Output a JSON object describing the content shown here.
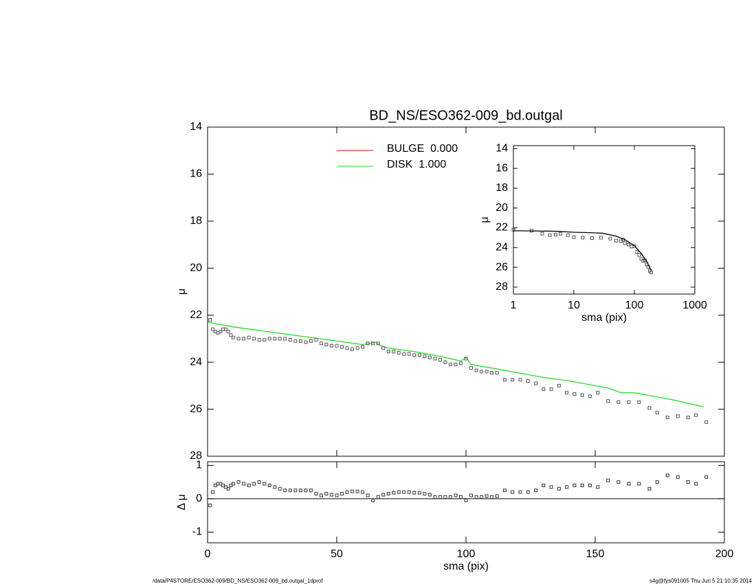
{
  "chart_data": [
    {
      "type": "line",
      "title": "BD_NS/ESO362-009_bd.outgal",
      "ylabel": "μ",
      "xlim": [
        0,
        200
      ],
      "ylim": [
        28,
        14
      ],
      "xticks": [
        0,
        50,
        100,
        150,
        200
      ],
      "show_xtick_labels": false,
      "yticks": [
        14,
        16,
        18,
        20,
        22,
        24,
        26,
        28
      ],
      "legend": "upper-center",
      "series": [
        {
          "name": "BULGE  0.000",
          "color": "#e00000",
          "style": "line",
          "x": [],
          "values": []
        },
        {
          "name": "DISK  1.000",
          "color": "#22dd22",
          "style": "line",
          "x": [
            0,
            10,
            20,
            30,
            40,
            50,
            60,
            63,
            65,
            67,
            70,
            80,
            90,
            98,
            100,
            102,
            110,
            120,
            130,
            140,
            150,
            155,
            160,
            165,
            170,
            180,
            190,
            192
          ],
          "values": [
            22.3,
            22.5,
            22.65,
            22.8,
            22.95,
            23.1,
            23.25,
            23.2,
            23.15,
            23.3,
            23.4,
            23.55,
            23.75,
            23.95,
            23.8,
            24.1,
            24.25,
            24.45,
            24.65,
            24.8,
            25.0,
            25.1,
            25.3,
            25.3,
            25.4,
            25.6,
            25.85,
            25.9
          ]
        },
        {
          "color": "#555555",
          "style": "square",
          "x": [
            1,
            2,
            3,
            4,
            5,
            6,
            7,
            8,
            9,
            10,
            12,
            14,
            16,
            18,
            20,
            22,
            24,
            26,
            28,
            30,
            32,
            34,
            36,
            38,
            40,
            42,
            44,
            46,
            48,
            50,
            52,
            54,
            56,
            58,
            60,
            62,
            64,
            66,
            68,
            70,
            72,
            74,
            76,
            78,
            80,
            82,
            84,
            86,
            88,
            90,
            92,
            94,
            96,
            98,
            100,
            102,
            104,
            106,
            108,
            110,
            112,
            115,
            118,
            121,
            124,
            127,
            130,
            133,
            136,
            139,
            142,
            145,
            148,
            151,
            155,
            159,
            163,
            167,
            171,
            174,
            178,
            182,
            186,
            189,
            193
          ],
          "values": [
            22.2,
            22.6,
            22.7,
            22.75,
            22.7,
            22.6,
            22.6,
            22.7,
            22.85,
            22.95,
            23.0,
            23.0,
            22.95,
            23.0,
            23.05,
            23.05,
            23.0,
            23.0,
            23.0,
            23.0,
            23.05,
            23.1,
            23.1,
            23.15,
            23.1,
            23.05,
            23.2,
            23.25,
            23.3,
            23.3,
            23.35,
            23.4,
            23.45,
            23.4,
            23.35,
            23.2,
            23.2,
            23.2,
            23.4,
            23.55,
            23.55,
            23.6,
            23.65,
            23.65,
            23.7,
            23.7,
            23.75,
            23.8,
            23.85,
            23.9,
            24.0,
            24.1,
            24.1,
            24.05,
            23.85,
            24.25,
            24.35,
            24.4,
            24.4,
            24.45,
            24.45,
            24.75,
            24.75,
            24.75,
            24.8,
            24.9,
            25.15,
            25.15,
            25.0,
            25.3,
            25.35,
            25.4,
            25.45,
            25.3,
            25.65,
            25.7,
            25.7,
            25.7,
            25.95,
            26.15,
            26.35,
            26.3,
            26.35,
            26.25,
            26.55
          ]
        }
      ]
    },
    {
      "type": "scatter",
      "ylabel": "Δ μ",
      "xlabel": "sma (pix)",
      "xlim": [
        0,
        200
      ],
      "ylim": [
        -1.32,
        1.11
      ],
      "xticks": [
        0,
        50,
        100,
        150,
        200
      ],
      "yticks": [
        -1,
        0,
        1
      ],
      "hline": 0,
      "series": [
        {
          "color": "#333333",
          "style": "square",
          "x": [
            1,
            2,
            3,
            4,
            5,
            6,
            7,
            8,
            9,
            10,
            12,
            14,
            16,
            18,
            20,
            22,
            24,
            26,
            28,
            30,
            32,
            34,
            36,
            38,
            40,
            42,
            44,
            46,
            48,
            50,
            52,
            54,
            56,
            58,
            60,
            62,
            64,
            66,
            68,
            70,
            72,
            74,
            76,
            78,
            80,
            82,
            84,
            86,
            88,
            90,
            92,
            94,
            96,
            98,
            100,
            102,
            104,
            106,
            108,
            110,
            112,
            115,
            118,
            121,
            124,
            127,
            130,
            133,
            136,
            139,
            142,
            145,
            148,
            151,
            155,
            159,
            163,
            167,
            171,
            174,
            178,
            182,
            186,
            189,
            193
          ],
          "values": [
            -0.2,
            0.2,
            0.4,
            0.45,
            0.45,
            0.4,
            0.35,
            0.3,
            0.4,
            0.45,
            0.5,
            0.45,
            0.4,
            0.45,
            0.5,
            0.45,
            0.4,
            0.35,
            0.3,
            0.25,
            0.25,
            0.25,
            0.25,
            0.25,
            0.25,
            0.15,
            0.1,
            0.15,
            0.12,
            0.1,
            0.15,
            0.2,
            0.22,
            0.22,
            0.2,
            0.1,
            -0.05,
            0.05,
            0.12,
            0.15,
            0.18,
            0.2,
            0.2,
            0.2,
            0.18,
            0.18,
            0.15,
            0.12,
            0.05,
            0.05,
            0.05,
            0.05,
            0.1,
            0.05,
            -0.05,
            0.1,
            0.05,
            0.05,
            0.08,
            0.05,
            0.08,
            0.25,
            0.2,
            0.2,
            0.2,
            0.25,
            0.4,
            0.35,
            0.3,
            0.35,
            0.4,
            0.4,
            0.4,
            0.35,
            0.55,
            0.5,
            0.45,
            0.45,
            0.3,
            0.5,
            0.7,
            0.65,
            0.5,
            0.45,
            0.65
          ]
        }
      ]
    },
    {
      "type": "line",
      "xscale": "log",
      "ylabel": "μ",
      "xlabel": "sma (pix)",
      "xlim": [
        1,
        1000
      ],
      "ylim": [
        28.7,
        13.7
      ],
      "xticks": [
        1,
        10,
        100,
        1000
      ],
      "yticks": [
        14,
        16,
        18,
        20,
        22,
        24,
        26,
        28
      ],
      "series": [
        {
          "color": "#555555",
          "style": "square",
          "x": [
            1,
            2,
            3,
            4,
            5,
            6,
            8,
            10,
            14,
            20,
            28,
            40,
            50,
            60,
            65,
            70,
            80,
            90,
            100,
            110,
            120,
            130,
            140,
            150,
            160,
            170,
            180,
            190
          ],
          "values": [
            22.2,
            22.3,
            22.6,
            22.75,
            22.7,
            22.6,
            22.75,
            22.95,
            23.0,
            23.05,
            23.0,
            23.1,
            23.3,
            23.35,
            23.2,
            23.55,
            23.7,
            23.9,
            23.85,
            24.45,
            24.75,
            25.15,
            25.35,
            25.3,
            25.7,
            25.95,
            26.35,
            26.5
          ]
        },
        {
          "color": "#000000",
          "style": "line",
          "x": [
            1,
            5,
            10,
            20,
            30,
            50,
            70,
            100,
            130,
            160,
            190
          ],
          "values": [
            22.3,
            22.35,
            22.45,
            22.5,
            22.55,
            22.85,
            23.2,
            23.8,
            24.6,
            25.4,
            26.3
          ]
        }
      ]
    }
  ],
  "footer": {
    "left": "/data/P4STORE/ESO362-009/BD_NS/ESO362-009_bd.outgal_1dprof",
    "right": "s4g@fys091005  Thu Jun  5 21:10:35 2014"
  }
}
